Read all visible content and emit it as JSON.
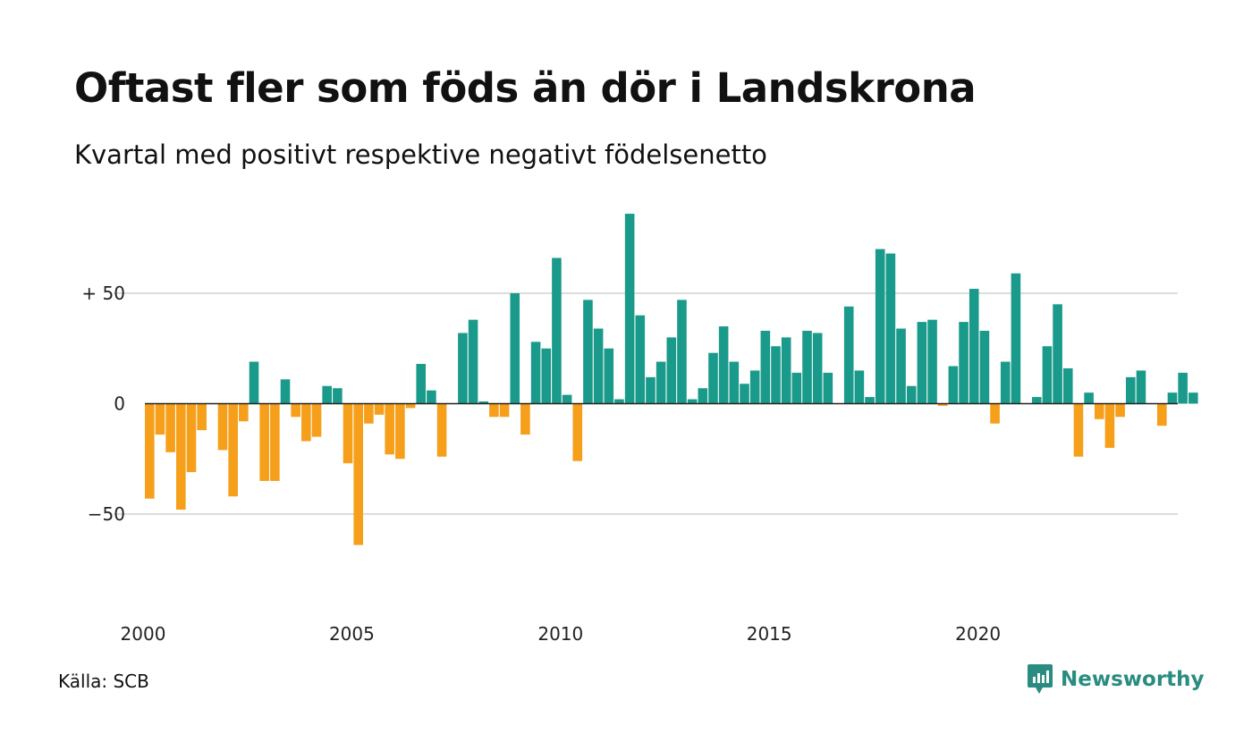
{
  "header": {
    "title": "Oftast fler som föds än dör i Landskrona",
    "subtitle": "Kvartal med positivt respektive negativt födelsenetto"
  },
  "footer": {
    "source": "Källa: SCB",
    "brand": "Newsworthy"
  },
  "colors": {
    "positive": "#1a9a8a",
    "negative": "#f59f1a",
    "grid": "#dddddd",
    "axis": "#222222",
    "brand": "#2a8c80"
  },
  "chart_data": {
    "type": "bar",
    "x_start": "2000 Q1",
    "x_ticks": [
      "2000",
      "2005",
      "2010",
      "2015",
      "2020"
    ],
    "y_ticks": [
      {
        "value": 50,
        "label": "+ 50"
      },
      {
        "value": 0,
        "label": "0"
      },
      {
        "value": -50,
        "label": "−50"
      }
    ],
    "ylim": [
      -80,
      88
    ],
    "grid": true,
    "values": [
      -43,
      -14,
      -22,
      -48,
      -31,
      -12,
      0,
      -21,
      -42,
      -8,
      19,
      -35,
      -35,
      11,
      -6,
      -17,
      -15,
      8,
      7,
      -27,
      -64,
      -9,
      -5,
      -23,
      -25,
      -2,
      18,
      6,
      -24,
      0,
      32,
      38,
      1,
      -6,
      -6,
      50,
      -14,
      28,
      25,
      66,
      4,
      -26,
      47,
      34,
      25,
      2,
      86,
      40,
      12,
      19,
      30,
      47,
      2,
      7,
      23,
      35,
      19,
      9,
      15,
      33,
      26,
      30,
      14,
      33,
      32,
      14,
      0,
      44,
      15,
      3,
      70,
      68,
      34,
      8,
      37,
      38,
      -1,
      17,
      37,
      52,
      33,
      -9,
      19,
      59,
      0,
      3,
      26,
      45,
      16,
      -24,
      5,
      -7,
      -20,
      -6,
      12,
      15,
      0,
      -10,
      5,
      14,
      5
    ]
  }
}
